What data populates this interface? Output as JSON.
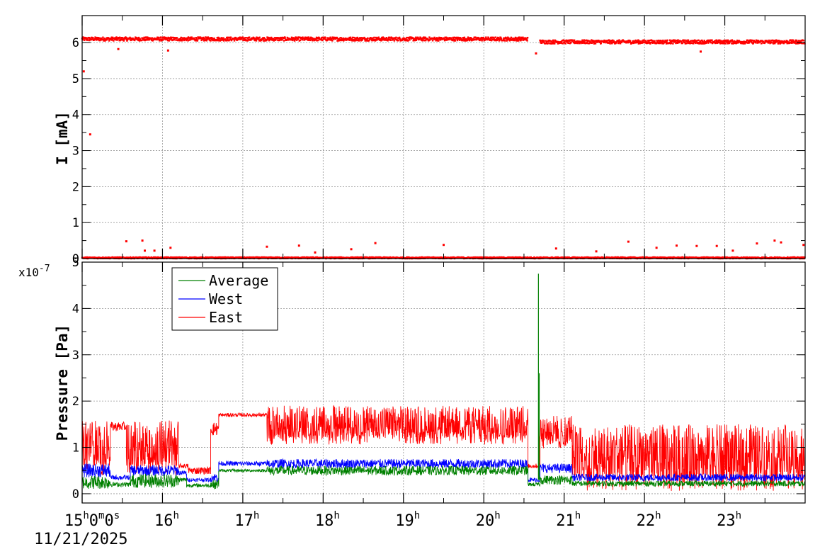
{
  "chart_data": [
    {
      "id": "current",
      "type": "scatter",
      "ylabel": "I [mA]",
      "ylim": [
        0,
        6.75
      ],
      "yticks": [
        "0",
        "1",
        "2",
        "3",
        "4",
        "5",
        "6"
      ],
      "grid": true,
      "x_range_hours": [
        15.0,
        24.0
      ],
      "series": [
        {
          "color": "#ff0000",
          "levels": [
            {
              "x": [
                15.0,
                20.55
              ],
              "y_base": 6.1,
              "y_noise": 0.05
            },
            {
              "x": [
                20.7,
                24.0
              ],
              "y_base": 6.02,
              "y_noise": 0.05
            },
            {
              "x": [
                15.0,
                24.0
              ],
              "y_base": 0.02,
              "y_noise": 0.02
            }
          ],
          "outliers": [
            {
              "x": 15.02,
              "y": 5.2
            },
            {
              "x": 15.1,
              "y": 3.45
            },
            {
              "x": 15.55,
              "y": 0.48
            },
            {
              "x": 15.75,
              "y": 0.5
            },
            {
              "x": 15.78,
              "y": 0.22
            },
            {
              "x": 15.9,
              "y": 0.22
            },
            {
              "x": 16.1,
              "y": 0.3
            },
            {
              "x": 17.3,
              "y": 0.33
            },
            {
              "x": 17.7,
              "y": 0.36
            },
            {
              "x": 17.9,
              "y": 0.17
            },
            {
              "x": 18.35,
              "y": 0.26
            },
            {
              "x": 18.65,
              "y": 0.43
            },
            {
              "x": 19.5,
              "y": 0.38
            },
            {
              "x": 20.9,
              "y": 0.28
            },
            {
              "x": 21.4,
              "y": 0.2
            },
            {
              "x": 21.8,
              "y": 0.47
            },
            {
              "x": 22.15,
              "y": 0.3
            },
            {
              "x": 22.4,
              "y": 0.36
            },
            {
              "x": 22.65,
              "y": 0.35
            },
            {
              "x": 22.9,
              "y": 0.35
            },
            {
              "x": 23.1,
              "y": 0.22
            },
            {
              "x": 23.4,
              "y": 0.42
            },
            {
              "x": 23.62,
              "y": 0.5
            },
            {
              "x": 23.7,
              "y": 0.45
            },
            {
              "x": 23.98,
              "y": 0.38
            },
            {
              "x": 15.45,
              "y": 5.82
            },
            {
              "x": 16.07,
              "y": 5.78
            },
            {
              "x": 20.65,
              "y": 5.7
            },
            {
              "x": 22.7,
              "y": 5.75
            }
          ]
        }
      ]
    },
    {
      "id": "pressure",
      "type": "line",
      "ylabel": "Pressure [Pa]",
      "y_exponent": "x10",
      "y_exponent_power": "-7",
      "ylim": [
        -0.2,
        5.0
      ],
      "yticks": [
        "0",
        "1",
        "2",
        "3",
        "4",
        "5"
      ],
      "grid": true,
      "legend_position": "top-left",
      "x_range_hours": [
        15.0,
        24.0
      ],
      "x_tick_hours": [
        15,
        16,
        17,
        18,
        19,
        20,
        21,
        22,
        23
      ],
      "x_tick_labels": [
        {
          "base": "15",
          "parts": [
            [
              "h",
              "0"
            ],
            [
              "m",
              "0"
            ],
            [
              "s",
              ""
            ]
          ]
        },
        {
          "base": "16",
          "parts": [
            [
              "h",
              ""
            ]
          ]
        },
        {
          "base": "17",
          "parts": [
            [
              "h",
              ""
            ]
          ]
        },
        {
          "base": "18",
          "parts": [
            [
              "h",
              ""
            ]
          ]
        },
        {
          "base": "19",
          "parts": [
            [
              "h",
              ""
            ]
          ]
        },
        {
          "base": "20",
          "parts": [
            [
              "h",
              ""
            ]
          ]
        },
        {
          "base": "21",
          "parts": [
            [
              "h",
              ""
            ]
          ]
        },
        {
          "base": "22",
          "parts": [
            [
              "h",
              ""
            ]
          ]
        },
        {
          "base": "23",
          "parts": [
            [
              "h",
              ""
            ]
          ]
        }
      ],
      "date": "11/21/2025",
      "series": [
        {
          "name": "Average",
          "color": "#008000",
          "segments": [
            {
              "x": [
                15.0,
                15.35
              ],
              "base": 0.25,
              "noise": 0.15
            },
            {
              "x": [
                15.35,
                15.6
              ],
              "base": 0.2,
              "noise": 0.05
            },
            {
              "x": [
                15.6,
                16.2
              ],
              "base": 0.28,
              "noise": 0.15
            },
            {
              "x": [
                16.2,
                16.3
              ],
              "base": 0.3,
              "noise": 0.05
            },
            {
              "x": [
                16.3,
                16.6
              ],
              "base": 0.18,
              "noise": 0.04
            },
            {
              "x": [
                16.6,
                16.7
              ],
              "base": 0.2,
              "noise": 0.1
            },
            {
              "x": [
                16.7,
                17.3
              ],
              "base": 0.5,
              "noise": 0.03
            },
            {
              "x": [
                17.3,
                20.55
              ],
              "base": 0.5,
              "noise": 0.1
            },
            {
              "x": [
                20.55,
                20.7
              ],
              "base": 0.2,
              "noise": 0.04
            },
            {
              "x": [
                20.7,
                21.1
              ],
              "base": 0.3,
              "noise": 0.1
            },
            {
              "x": [
                21.1,
                24.0
              ],
              "base": 0.22,
              "noise": 0.06
            }
          ],
          "spikes": [
            {
              "x": 20.68,
              "y": 4.75
            },
            {
              "x": 20.69,
              "y": 2.6
            }
          ]
        },
        {
          "name": "West",
          "color": "#0000ff",
          "segments": [
            {
              "x": [
                15.0,
                15.35
              ],
              "base": 0.5,
              "noise": 0.15
            },
            {
              "x": [
                15.35,
                15.6
              ],
              "base": 0.35,
              "noise": 0.05
            },
            {
              "x": [
                15.6,
                16.2
              ],
              "base": 0.5,
              "noise": 0.12
            },
            {
              "x": [
                16.2,
                16.3
              ],
              "base": 0.45,
              "noise": 0.05
            },
            {
              "x": [
                16.3,
                16.6
              ],
              "base": 0.3,
              "noise": 0.04
            },
            {
              "x": [
                16.6,
                16.7
              ],
              "base": 0.35,
              "noise": 0.1
            },
            {
              "x": [
                16.7,
                17.3
              ],
              "base": 0.65,
              "noise": 0.05
            },
            {
              "x": [
                17.3,
                20.55
              ],
              "base": 0.65,
              "noise": 0.1
            },
            {
              "x": [
                20.55,
                20.7
              ],
              "base": 0.3,
              "noise": 0.05
            },
            {
              "x": [
                20.7,
                21.1
              ],
              "base": 0.55,
              "noise": 0.1
            },
            {
              "x": [
                21.1,
                24.0
              ],
              "base": 0.35,
              "noise": 0.08
            }
          ],
          "spikes": []
        },
        {
          "name": "East",
          "color": "#ff0000",
          "segments": [
            {
              "x": [
                15.0,
                15.35
              ],
              "base": 1.1,
              "noise": 0.5
            },
            {
              "x": [
                15.35,
                15.55
              ],
              "base": 1.45,
              "noise": 0.1
            },
            {
              "x": [
                15.55,
                16.2
              ],
              "base": 1.1,
              "noise": 0.5
            },
            {
              "x": [
                16.2,
                16.32
              ],
              "base": 0.6,
              "noise": 0.05
            },
            {
              "x": [
                16.32,
                16.6
              ],
              "base": 0.5,
              "noise": 0.08
            },
            {
              "x": [
                16.6,
                16.7
              ],
              "base": 1.4,
              "noise": 0.15
            },
            {
              "x": [
                16.7,
                17.3
              ],
              "base": 1.7,
              "noise": 0.04
            },
            {
              "x": [
                17.3,
                20.55
              ],
              "base": 1.55,
              "noise": 0.35
            },
            {
              "x": [
                20.55,
                20.7
              ],
              "base": 0.6,
              "noise": 0.05
            },
            {
              "x": [
                20.7,
                21.1
              ],
              "base": 1.4,
              "noise": 0.3
            },
            {
              "x": [
                21.1,
                24.0
              ],
              "base": 0.9,
              "noise": 0.6
            }
          ],
          "spikes": []
        }
      ]
    }
  ]
}
